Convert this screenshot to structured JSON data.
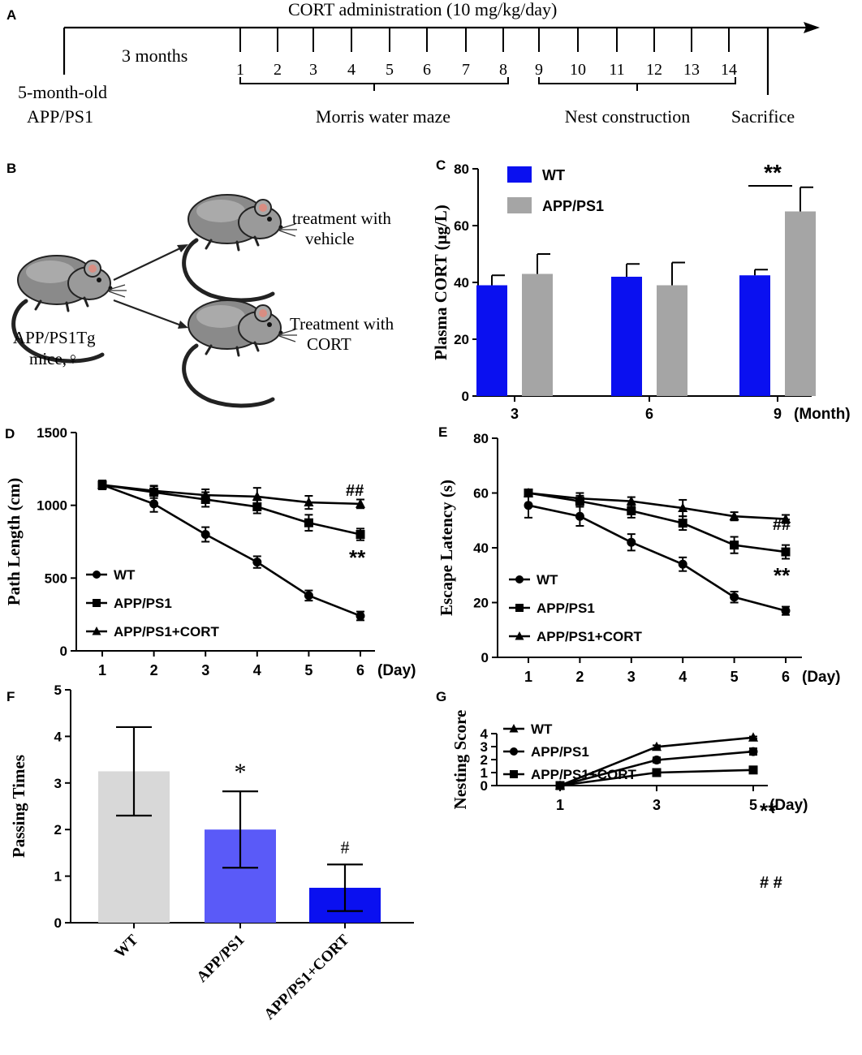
{
  "panels": {
    "A": {
      "letter": "A",
      "title": "CORT administration (10 mg/kg/day)",
      "age_label": "5-month-old",
      "strain_label": "APP/PS1",
      "duration_label": "3 months",
      "days": [
        "1",
        "2",
        "3",
        "4",
        "5",
        "6",
        "7",
        "8",
        "9",
        "10",
        "11",
        "12",
        "13",
        "14"
      ],
      "mwm_label": "Morris water maze",
      "nest_label": "Nest construction",
      "sacrifice_label": "Sacrifice"
    },
    "B": {
      "letter": "B",
      "source_label_1": "APP/PS1Tg",
      "source_label_2": "mice,♀",
      "vehicle_label_1": "treatment with",
      "vehicle_label_2": "vehicle",
      "cort_label_1": "Treatment with",
      "cort_label_2": "CORT"
    },
    "C": {
      "letter": "C"
    },
    "D": {
      "letter": "D"
    },
    "E": {
      "letter": "E"
    },
    "F": {
      "letter": "F"
    },
    "G": {
      "letter": "G"
    }
  },
  "colors": {
    "wt_blue": "#0a10f0",
    "app_gray": "#a5a5a5",
    "f_wt": "#d8d8d8",
    "f_app": "#5a5af8",
    "f_cort": "#0a10f0"
  },
  "chart_data": [
    {
      "id": "C",
      "type": "bar",
      "ylabel": "Plasma CORT (μg/L)",
      "xlabel": "(Month)",
      "categories": [
        "3",
        "6",
        "9"
      ],
      "ylim": [
        0,
        80
      ],
      "yticks": [
        "0",
        "20",
        "40",
        "60",
        "80"
      ],
      "series": [
        {
          "name": "WT",
          "color": "#0a10f0",
          "values": [
            39,
            42,
            42.5
          ],
          "errors": [
            3.5,
            4.5,
            2
          ]
        },
        {
          "name": "APP/PS1",
          "color": "#a5a5a5",
          "values": [
            43,
            39,
            65
          ],
          "errors": [
            7,
            8,
            8.5
          ]
        }
      ],
      "annotation": "**"
    },
    {
      "id": "D",
      "type": "line",
      "ylabel": "Path Length (cm)",
      "xlabel": "(Day)",
      "x": [
        "1",
        "2",
        "3",
        "4",
        "5",
        "6"
      ],
      "ylim": [
        0,
        1500
      ],
      "yticks": [
        "0",
        "500",
        "1000",
        "1500"
      ],
      "series": [
        {
          "name": "WT",
          "marker": "circle",
          "values": [
            1140,
            1010,
            800,
            610,
            380,
            240
          ],
          "errors": [
            30,
            55,
            50,
            40,
            35,
            30
          ]
        },
        {
          "name": "APP/PS1",
          "marker": "square",
          "values": [
            1140,
            1090,
            1040,
            990,
            880,
            800
          ],
          "errors": [
            30,
            40,
            50,
            45,
            55,
            40
          ]
        },
        {
          "name": "APP/PS1+CORT",
          "marker": "triangle",
          "values": [
            1140,
            1100,
            1070,
            1060,
            1020,
            1010
          ],
          "errors": [
            30,
            35,
            40,
            60,
            45,
            30
          ]
        }
      ],
      "annotations": [
        "##",
        "**"
      ]
    },
    {
      "id": "E",
      "type": "line",
      "ylabel": "Escape Latency (s)",
      "xlabel": "(Day)",
      "x": [
        "1",
        "2",
        "3",
        "4",
        "5",
        "6"
      ],
      "ylim": [
        0,
        80
      ],
      "yticks": [
        "0",
        "20",
        "40",
        "60",
        "80"
      ],
      "series": [
        {
          "name": "WT",
          "marker": "circle",
          "values": [
            55.5,
            51.5,
            42,
            34,
            22,
            17
          ],
          "errors": [
            4.5,
            3.5,
            3,
            2.5,
            2,
            1.5
          ]
        },
        {
          "name": "APP/PS1",
          "marker": "square",
          "values": [
            60,
            57,
            53.5,
            49,
            41,
            38.5
          ],
          "errors": [
            1,
            2,
            2.5,
            2.5,
            3,
            2.5
          ]
        },
        {
          "name": "APP/PS1+CORT",
          "marker": "triangle",
          "values": [
            60,
            58,
            57,
            54.5,
            51.5,
            50.5
          ],
          "errors": [
            1,
            2,
            1.5,
            3,
            1.5,
            1.5
          ]
        }
      ],
      "annotations": [
        "##",
        "**"
      ]
    },
    {
      "id": "F",
      "type": "bar",
      "ylabel": "Passing Times",
      "categories": [
        "WT",
        "APP/PS1",
        "APP/PS1+CORT"
      ],
      "ylim": [
        0,
        5
      ],
      "yticks": [
        "0",
        "1",
        "2",
        "3",
        "4",
        "5"
      ],
      "values": [
        3.25,
        2.0,
        0.75
      ],
      "errors": [
        0.95,
        0.82,
        0.5
      ],
      "colors": [
        "#d8d8d8",
        "#5a5af8",
        "#0a10f0"
      ],
      "annotations": [
        "",
        "*",
        "#"
      ]
    },
    {
      "id": "G",
      "type": "line",
      "ylabel": "Nesting Score",
      "xlabel": "(Day)",
      "x": [
        "1",
        "3",
        "5"
      ],
      "ylim": [
        0,
        4
      ],
      "yticks": [
        "0",
        "1",
        "2",
        "3",
        "4"
      ],
      "series": [
        {
          "name": "WT",
          "marker": "triangle",
          "values": [
            0,
            2.98,
            3.7
          ],
          "errors": [
            0,
            0.12,
            0.08
          ]
        },
        {
          "name": "APP/PS1",
          "marker": "circle",
          "values": [
            0,
            1.97,
            2.62
          ],
          "errors": [
            0,
            0.2,
            0.25
          ]
        },
        {
          "name": "APP/PS1+CORT",
          "marker": "square",
          "values": [
            0,
            1.0,
            1.2
          ],
          "errors": [
            0,
            0.2,
            0.2
          ]
        }
      ],
      "annotations": [
        "**",
        "# #"
      ]
    }
  ]
}
